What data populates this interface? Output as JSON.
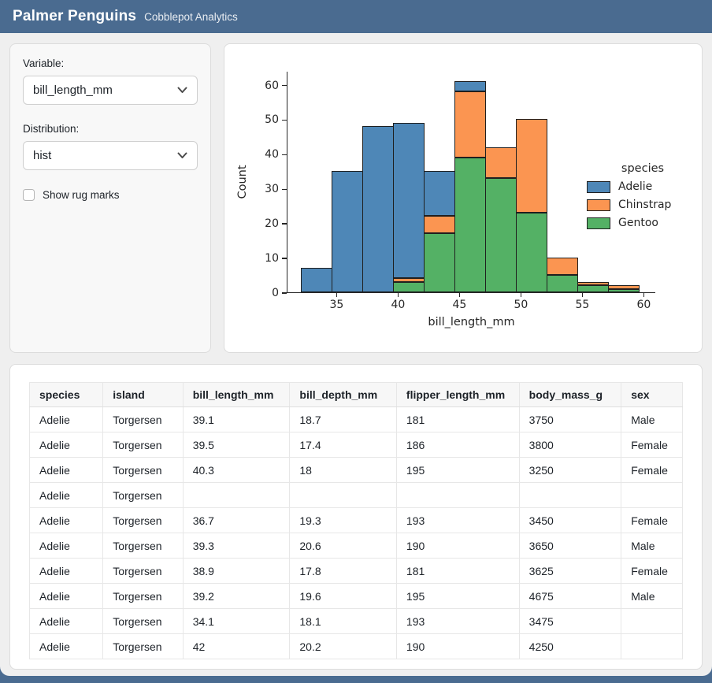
{
  "header": {
    "title": "Palmer Penguins",
    "subtitle": "Cobblepot Analytics"
  },
  "sidebar": {
    "variable_label": "Variable:",
    "variable_value": "bill_length_mm",
    "distribution_label": "Distribution:",
    "distribution_value": "hist",
    "rug_label": "Show rug marks",
    "rug_checked": false
  },
  "chart_data": {
    "type": "bar",
    "subtype": "stacked-histogram",
    "title": "",
    "xlabel": "bill_length_mm",
    "ylabel": "Count",
    "xlim": [
      31,
      61
    ],
    "ylim": [
      0,
      64
    ],
    "xticks": [
      35,
      40,
      45,
      50,
      55,
      60
    ],
    "yticks": [
      0,
      10,
      20,
      30,
      40,
      50,
      60
    ],
    "bin_width": 2.5,
    "bin_edges": [
      32.1,
      34.6,
      37.1,
      39.6,
      42.1,
      44.6,
      47.1,
      49.6,
      52.1,
      54.6,
      57.1,
      59.6
    ],
    "bin_totals": [
      7,
      35,
      48,
      49,
      35,
      61,
      42,
      50,
      10,
      3,
      2
    ],
    "series": [
      {
        "name": "Gentoo",
        "color": "#54b165",
        "values": [
          0,
          0,
          0,
          3,
          17,
          39,
          33,
          23,
          5,
          2,
          1
        ]
      },
      {
        "name": "Chinstrap",
        "color": "#fb9551",
        "values": [
          0,
          0,
          0,
          1,
          5,
          19,
          9,
          27,
          5,
          1,
          1
        ]
      },
      {
        "name": "Adelie",
        "color": "#4e87b7",
        "values": [
          7,
          35,
          48,
          45,
          13,
          3,
          0,
          0,
          0,
          0,
          0
        ]
      }
    ],
    "edge_color": "#1f1f1f",
    "legend": {
      "title": "species",
      "position": "right",
      "entries": [
        {
          "label": "Adelie",
          "color": "#4e87b7"
        },
        {
          "label": "Chinstrap",
          "color": "#fb9551"
        },
        {
          "label": "Gentoo",
          "color": "#54b165"
        }
      ]
    },
    "grid": false
  },
  "table": {
    "columns": [
      "species",
      "island",
      "bill_length_mm",
      "bill_depth_mm",
      "flipper_length_mm",
      "body_mass_g",
      "sex"
    ],
    "rows": [
      [
        "Adelie",
        "Torgersen",
        "39.1",
        "18.7",
        "181",
        "3750",
        "Male"
      ],
      [
        "Adelie",
        "Torgersen",
        "39.5",
        "17.4",
        "186",
        "3800",
        "Female"
      ],
      [
        "Adelie",
        "Torgersen",
        "40.3",
        "18",
        "195",
        "3250",
        "Female"
      ],
      [
        "Adelie",
        "Torgersen",
        "",
        "",
        "",
        "",
        ""
      ],
      [
        "Adelie",
        "Torgersen",
        "36.7",
        "19.3",
        "193",
        "3450",
        "Female"
      ],
      [
        "Adelie",
        "Torgersen",
        "39.3",
        "20.6",
        "190",
        "3650",
        "Male"
      ],
      [
        "Adelie",
        "Torgersen",
        "38.9",
        "17.8",
        "181",
        "3625",
        "Female"
      ],
      [
        "Adelie",
        "Torgersen",
        "39.2",
        "19.6",
        "195",
        "4675",
        "Male"
      ],
      [
        "Adelie",
        "Torgersen",
        "34.1",
        "18.1",
        "193",
        "3475",
        ""
      ],
      [
        "Adelie",
        "Torgersen",
        "42",
        "20.2",
        "190",
        "4250",
        ""
      ]
    ]
  },
  "colors": {
    "header_bg": "#4a6b90",
    "sheet_bg": "#efefef",
    "card_border": "#dcdcdc"
  }
}
